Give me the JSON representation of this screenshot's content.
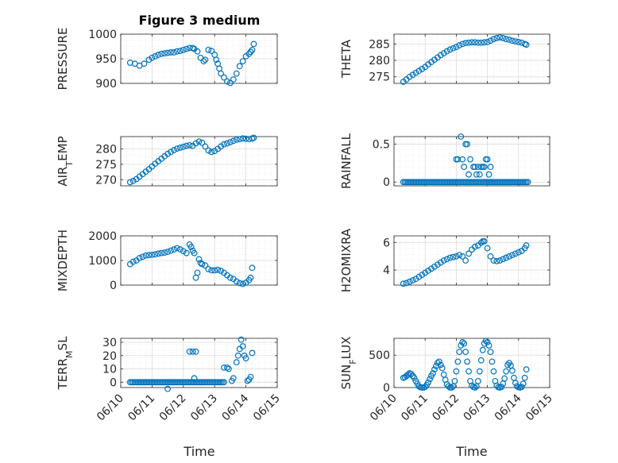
{
  "figure": {
    "title": "Figure 3 medium",
    "xlabel": "Time"
  },
  "colors": {
    "marker": "#0072BD",
    "axis": "#262626",
    "grid": "#dcdcdc",
    "background": "#ffffff"
  },
  "chart_data": [
    {
      "type": "scatter",
      "ylabel": "PRESSURE",
      "ylabel_sub": "",
      "ylim": [
        900,
        1000
      ],
      "yticks": [
        900,
        950,
        1000
      ],
      "xlim": [
        0,
        5
      ],
      "xticks": [
        0,
        1,
        2,
        3,
        4,
        5
      ],
      "xticklabels": [
        "06/10",
        "06/11",
        "06/12",
        "06/13",
        "06/14",
        "06/15"
      ],
      "show_xticklabels": false,
      "grid": true,
      "series": [
        {
          "x": [
            0.3,
            0.45,
            0.6,
            0.75,
            0.9,
            1.0,
            1.1,
            1.2,
            1.3,
            1.4,
            1.5,
            1.6,
            1.7,
            1.8,
            1.9,
            2.0,
            2.1,
            2.2,
            2.3,
            2.35,
            2.45,
            2.55,
            2.65,
            2.7,
            2.8,
            2.9,
            3.0,
            3.05,
            3.1,
            3.15,
            3.2,
            3.3,
            3.4,
            3.5,
            3.6,
            3.7,
            3.8,
            3.9,
            4.0,
            4.1,
            4.15,
            4.2,
            4.25
          ],
          "y": [
            942,
            940,
            936,
            940,
            948,
            952,
            955,
            958,
            960,
            961,
            962,
            963,
            963,
            965,
            966,
            968,
            970,
            972,
            972,
            970,
            965,
            952,
            945,
            948,
            968,
            966,
            958,
            948,
            940,
            930,
            920,
            912,
            904,
            901,
            908,
            920,
            935,
            945,
            955,
            960,
            964,
            968,
            980
          ]
        }
      ]
    },
    {
      "type": "scatter",
      "ylabel": "THETA",
      "ylabel_sub": "",
      "ylim": [
        273,
        288
      ],
      "yticks": [
        275,
        280,
        285
      ],
      "xlim": [
        0,
        5
      ],
      "xticks": [
        0,
        1,
        2,
        3,
        4,
        5
      ],
      "xticklabels": [
        "06/10",
        "06/11",
        "06/12",
        "06/13",
        "06/14",
        "06/15"
      ],
      "show_xticklabels": false,
      "grid": true,
      "series": [
        {
          "x": [
            0.3,
            0.4,
            0.5,
            0.6,
            0.7,
            0.8,
            0.9,
            1.0,
            1.1,
            1.2,
            1.3,
            1.4,
            1.5,
            1.6,
            1.7,
            1.8,
            1.9,
            2.0,
            2.1,
            2.2,
            2.3,
            2.4,
            2.5,
            2.6,
            2.7,
            2.8,
            2.9,
            3.0,
            3.1,
            3.2,
            3.3,
            3.4,
            3.5,
            3.6,
            3.7,
            3.8,
            3.9,
            4.0,
            4.1,
            4.2,
            4.25
          ],
          "y": [
            273.5,
            274.2,
            275.0,
            275.6,
            276.2,
            276.8,
            277.4,
            278.0,
            278.8,
            279.5,
            280.2,
            280.9,
            281.6,
            282.2,
            282.8,
            283.3,
            283.7,
            284.1,
            284.6,
            285.0,
            285.3,
            285.4,
            285.5,
            285.5,
            285.4,
            285.4,
            285.5,
            285.6,
            286.0,
            286.5,
            286.8,
            287.0,
            286.8,
            286.5,
            286.3,
            286.0,
            285.8,
            285.6,
            285.4,
            285.0,
            284.8
          ]
        }
      ]
    },
    {
      "type": "scatter",
      "ylabel": "AIR",
      "ylabel_sub": "T",
      "ylabel_after": "EMP",
      "ylim": [
        268,
        284
      ],
      "yticks": [
        270,
        275,
        280
      ],
      "xlim": [
        0,
        5
      ],
      "xticks": [
        0,
        1,
        2,
        3,
        4,
        5
      ],
      "xticklabels": [
        "06/10",
        "06/11",
        "06/12",
        "06/13",
        "06/14",
        "06/15"
      ],
      "show_xticklabels": false,
      "grid": true,
      "series": [
        {
          "x": [
            0.3,
            0.4,
            0.5,
            0.6,
            0.7,
            0.8,
            0.9,
            1.0,
            1.1,
            1.2,
            1.3,
            1.4,
            1.5,
            1.6,
            1.7,
            1.8,
            1.9,
            2.0,
            2.1,
            2.2,
            2.3,
            2.4,
            2.5,
            2.6,
            2.7,
            2.8,
            2.9,
            3.0,
            3.1,
            3.2,
            3.3,
            3.4,
            3.5,
            3.6,
            3.7,
            3.8,
            3.9,
            4.0,
            4.1,
            4.2,
            4.25
          ],
          "y": [
            269.2,
            269.6,
            270.2,
            271.0,
            271.8,
            272.6,
            273.4,
            274.3,
            275.2,
            276.0,
            276.8,
            277.6,
            278.4,
            279.0,
            279.6,
            280.1,
            280.4,
            280.7,
            281.0,
            281.2,
            281.0,
            281.8,
            282.4,
            282.0,
            280.8,
            279.5,
            279.0,
            279.3,
            280.0,
            280.8,
            281.5,
            281.8,
            282.2,
            282.6,
            283.0,
            283.2,
            283.4,
            283.3,
            283.2,
            283.4,
            283.6
          ]
        }
      ]
    },
    {
      "type": "scatter",
      "ylabel": "RAINFALL",
      "ylabel_sub": "",
      "ylim": [
        -0.05,
        0.6
      ],
      "yticks": [
        0,
        0.5
      ],
      "xlim": [
        0,
        5
      ],
      "xticks": [
        0,
        1,
        2,
        3,
        4,
        5
      ],
      "xticklabels": [
        "06/10",
        "06/11",
        "06/12",
        "06/13",
        "06/14",
        "06/15"
      ],
      "show_xticklabels": false,
      "grid": true,
      "series": [
        {
          "x": [
            2.0,
            2.05,
            2.15,
            2.2,
            2.25,
            2.3,
            2.35,
            2.4,
            2.45,
            2.55,
            2.6,
            2.65,
            2.7,
            2.75,
            2.8,
            2.85,
            2.9,
            2.95,
            3.0,
            3.05,
            3.1
          ],
          "y": [
            0.3,
            0.3,
            0.6,
            0.3,
            0.2,
            0.5,
            0.5,
            0.1,
            0.3,
            0.2,
            0.2,
            0.1,
            0.2,
            0.1,
            0.2,
            0.2,
            0.2,
            0.3,
            0.3,
            0.1,
            0.2
          ],
          "baseline": {
            "x_start": 0.3,
            "x_end": 4.3,
            "x_step": 0.05,
            "y": 0
          }
        }
      ]
    },
    {
      "type": "scatter",
      "ylabel": "MIXDEPTH",
      "ylabel_sub": "",
      "ylim": [
        0,
        2000
      ],
      "yticks": [
        0,
        1000,
        2000
      ],
      "xlim": [
        0,
        5
      ],
      "xticks": [
        0,
        1,
        2,
        3,
        4,
        5
      ],
      "xticklabels": [
        "06/10",
        "06/11",
        "06/12",
        "06/13",
        "06/14",
        "06/15"
      ],
      "show_xticklabels": false,
      "grid": true,
      "series": [
        {
          "x": [
            0.3,
            0.4,
            0.5,
            0.6,
            0.7,
            0.8,
            0.9,
            1.0,
            1.1,
            1.2,
            1.3,
            1.4,
            1.5,
            1.6,
            1.7,
            1.8,
            1.9,
            2.0,
            2.1,
            2.2,
            2.25,
            2.3,
            2.35,
            2.4,
            2.45,
            2.5,
            2.55,
            2.6,
            2.7,
            2.8,
            2.9,
            3.0,
            3.1,
            3.2,
            3.3,
            3.4,
            3.5,
            3.6,
            3.7,
            3.8,
            3.9,
            4.0,
            4.1,
            4.15,
            4.2
          ],
          "y": [
            850,
            950,
            1000,
            1100,
            1150,
            1200,
            1220,
            1230,
            1250,
            1280,
            1300,
            1320,
            1350,
            1400,
            1450,
            1500,
            1450,
            1380,
            1300,
            1650,
            1550,
            1400,
            1300,
            300,
            500,
            1050,
            900,
            850,
            800,
            650,
            600,
            600,
            620,
            580,
            500,
            400,
            300,
            250,
            150,
            80,
            50,
            100,
            200,
            300,
            700
          ]
        }
      ]
    },
    {
      "type": "scatter",
      "ylabel": "H2OMIXRA",
      "ylabel_sub": "",
      "ylim": [
        2.9,
        6.5
      ],
      "yticks": [
        4,
        6
      ],
      "xlim": [
        0,
        5
      ],
      "xticks": [
        0,
        1,
        2,
        3,
        4,
        5
      ],
      "xticklabels": [
        "06/10",
        "06/11",
        "06/12",
        "06/13",
        "06/14",
        "06/15"
      ],
      "show_xticklabels": false,
      "grid": true,
      "series": [
        {
          "x": [
            0.3,
            0.4,
            0.5,
            0.6,
            0.7,
            0.8,
            0.9,
            1.0,
            1.1,
            1.2,
            1.3,
            1.4,
            1.5,
            1.6,
            1.7,
            1.8,
            1.9,
            2.0,
            2.1,
            2.2,
            2.3,
            2.4,
            2.5,
            2.6,
            2.7,
            2.8,
            2.85,
            2.9,
            3.0,
            3.1,
            3.2,
            3.3,
            3.4,
            3.5,
            3.6,
            3.7,
            3.8,
            3.9,
            4.0,
            4.1,
            4.2,
            4.25
          ],
          "y": [
            3.0,
            3.05,
            3.15,
            3.25,
            3.35,
            3.5,
            3.65,
            3.8,
            3.95,
            4.1,
            4.25,
            4.4,
            4.55,
            4.7,
            4.8,
            4.9,
            4.95,
            5.0,
            5.1,
            5.0,
            4.7,
            5.2,
            5.5,
            5.7,
            5.8,
            6.0,
            6.1,
            6.1,
            5.6,
            5.0,
            4.7,
            4.65,
            4.7,
            4.8,
            4.9,
            5.0,
            5.1,
            5.2,
            5.3,
            5.4,
            5.6,
            5.8
          ]
        }
      ]
    },
    {
      "type": "scatter",
      "ylabel": "TERR",
      "ylabel_sub": "M",
      "ylabel_after": "SL",
      "ylim": [
        -4,
        33
      ],
      "yticks": [
        0,
        10,
        20,
        30
      ],
      "xlim": [
        0,
        5
      ],
      "xticks": [
        0,
        1,
        2,
        3,
        4,
        5
      ],
      "xticklabels": [
        "06/10",
        "06/11",
        "06/12",
        "06/13",
        "06/14",
        "06/15"
      ],
      "show_xticklabels": true,
      "grid": true,
      "series": [
        {
          "x": [
            1.5,
            2.2,
            2.3,
            2.4,
            2.35,
            3.3,
            3.4,
            3.45,
            3.55,
            3.6,
            3.7,
            3.75,
            3.8,
            3.85,
            3.9,
            3.95,
            4.0,
            4.05,
            4.1,
            4.15,
            4.2
          ],
          "y": [
            -5,
            23,
            23,
            23,
            3,
            11,
            11,
            10,
            1,
            3,
            15,
            20,
            25,
            32,
            27,
            20,
            18,
            1,
            2,
            4,
            22
          ],
          "baseline": {
            "x_start": 0.3,
            "x_end": 3.3,
            "x_step": 0.05,
            "y": 0
          }
        }
      ]
    },
    {
      "type": "scatter",
      "ylabel": "SUN",
      "ylabel_sub": "F",
      "ylabel_after": "LUX",
      "ylim": [
        0,
        760
      ],
      "yticks": [
        0,
        500
      ],
      "xlim": [
        0,
        5
      ],
      "xticks": [
        0,
        1,
        2,
        3,
        4,
        5
      ],
      "xticklabels": [
        "06/10",
        "06/11",
        "06/12",
        "06/13",
        "06/14",
        "06/15"
      ],
      "show_xticklabels": true,
      "grid": true,
      "series": [
        {
          "x": [
            0.3,
            0.35,
            0.4,
            0.45,
            0.5,
            0.55,
            0.6,
            0.65,
            0.7,
            0.75,
            0.8,
            0.85,
            0.9,
            0.95,
            1.0,
            1.05,
            1.1,
            1.15,
            1.2,
            1.25,
            1.3,
            1.35,
            1.4,
            1.45,
            1.5,
            1.55,
            1.6,
            1.65,
            1.7,
            1.75,
            1.8,
            1.85,
            1.9,
            1.95,
            2.0,
            2.05,
            2.1,
            2.15,
            2.2,
            2.25,
            2.3,
            2.35,
            2.4,
            2.45,
            2.5,
            2.55,
            2.6,
            2.65,
            2.7,
            2.75,
            2.8,
            2.85,
            2.9,
            2.95,
            3.0,
            3.05,
            3.1,
            3.15,
            3.2,
            3.25,
            3.3,
            3.35,
            3.4,
            3.45,
            3.5,
            3.55,
            3.6,
            3.65,
            3.7,
            3.75,
            3.8,
            3.85,
            3.9,
            3.95,
            4.0,
            4.05,
            4.1,
            4.15,
            4.2,
            4.25
          ],
          "y": [
            150,
            160,
            180,
            200,
            220,
            210,
            180,
            150,
            100,
            60,
            20,
            5,
            0,
            0,
            10,
            40,
            80,
            130,
            180,
            220,
            280,
            330,
            380,
            400,
            350,
            300,
            200,
            120,
            50,
            20,
            0,
            0,
            20,
            100,
            250,
            400,
            550,
            650,
            700,
            680,
            550,
            400,
            250,
            100,
            30,
            10,
            0,
            20,
            100,
            250,
            420,
            580,
            680,
            720,
            700,
            650,
            550,
            400,
            250,
            100,
            30,
            5,
            0,
            10,
            60,
            140,
            250,
            350,
            380,
            340,
            260,
            150,
            70,
            20,
            5,
            0,
            10,
            60,
            150,
            280
          ]
        }
      ]
    }
  ]
}
